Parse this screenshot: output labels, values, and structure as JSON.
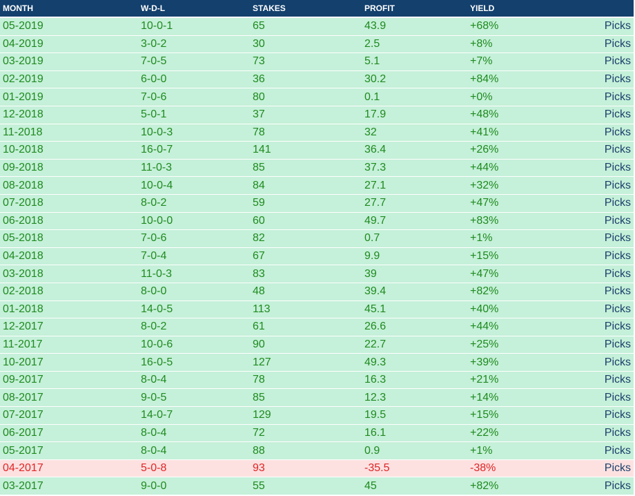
{
  "table": {
    "headers": {
      "month": "MONTH",
      "wdl": "W-D-L",
      "stakes": "STAKES",
      "profit": "PROFIT",
      "yield": "YIELD",
      "picks": ""
    },
    "colors": {
      "header_bg": "#13406d",
      "win_bg": "#c5f0d9",
      "win_text": "#1e8a1e",
      "loss_bg": "#fde1e1",
      "loss_text": "#e02424",
      "picks_link": "#1a3f6b"
    },
    "rows": [
      {
        "month": "05-2019",
        "wdl": "10-0-1",
        "stakes": "65",
        "profit": "43.9",
        "yield": "+68%",
        "picks": "Picks",
        "status": "win"
      },
      {
        "month": "04-2019",
        "wdl": "3-0-2",
        "stakes": "30",
        "profit": "2.5",
        "yield": "+8%",
        "picks": "Picks",
        "status": "win"
      },
      {
        "month": "03-2019",
        "wdl": "7-0-5",
        "stakes": "73",
        "profit": "5.1",
        "yield": "+7%",
        "picks": "Picks",
        "status": "win"
      },
      {
        "month": "02-2019",
        "wdl": "6-0-0",
        "stakes": "36",
        "profit": "30.2",
        "yield": "+84%",
        "picks": "Picks",
        "status": "win"
      },
      {
        "month": "01-2019",
        "wdl": "7-0-6",
        "stakes": "80",
        "profit": "0.1",
        "yield": "+0%",
        "picks": "Picks",
        "status": "win"
      },
      {
        "month": "12-2018",
        "wdl": "5-0-1",
        "stakes": "37",
        "profit": "17.9",
        "yield": "+48%",
        "picks": "Picks",
        "status": "win"
      },
      {
        "month": "11-2018",
        "wdl": "10-0-3",
        "stakes": "78",
        "profit": "32",
        "yield": "+41%",
        "picks": "Picks",
        "status": "win"
      },
      {
        "month": "10-2018",
        "wdl": "16-0-7",
        "stakes": "141",
        "profit": "36.4",
        "yield": "+26%",
        "picks": "Picks",
        "status": "win"
      },
      {
        "month": "09-2018",
        "wdl": "11-0-3",
        "stakes": "85",
        "profit": "37.3",
        "yield": "+44%",
        "picks": "Picks",
        "status": "win"
      },
      {
        "month": "08-2018",
        "wdl": "10-0-4",
        "stakes": "84",
        "profit": "27.1",
        "yield": "+32%",
        "picks": "Picks",
        "status": "win"
      },
      {
        "month": "07-2018",
        "wdl": "8-0-2",
        "stakes": "59",
        "profit": "27.7",
        "yield": "+47%",
        "picks": "Picks",
        "status": "win"
      },
      {
        "month": "06-2018",
        "wdl": "10-0-0",
        "stakes": "60",
        "profit": "49.7",
        "yield": "+83%",
        "picks": "Picks",
        "status": "win"
      },
      {
        "month": "05-2018",
        "wdl": "7-0-6",
        "stakes": "82",
        "profit": "0.7",
        "yield": "+1%",
        "picks": "Picks",
        "status": "win"
      },
      {
        "month": "04-2018",
        "wdl": "7-0-4",
        "stakes": "67",
        "profit": "9.9",
        "yield": "+15%",
        "picks": "Picks",
        "status": "win"
      },
      {
        "month": "03-2018",
        "wdl": "11-0-3",
        "stakes": "83",
        "profit": "39",
        "yield": "+47%",
        "picks": "Picks",
        "status": "win"
      },
      {
        "month": "02-2018",
        "wdl": "8-0-0",
        "stakes": "48",
        "profit": "39.4",
        "yield": "+82%",
        "picks": "Picks",
        "status": "win"
      },
      {
        "month": "01-2018",
        "wdl": "14-0-5",
        "stakes": "113",
        "profit": "45.1",
        "yield": "+40%",
        "picks": "Picks",
        "status": "win"
      },
      {
        "month": "12-2017",
        "wdl": "8-0-2",
        "stakes": "61",
        "profit": "26.6",
        "yield": "+44%",
        "picks": "Picks",
        "status": "win"
      },
      {
        "month": "11-2017",
        "wdl": "10-0-6",
        "stakes": "90",
        "profit": "22.7",
        "yield": "+25%",
        "picks": "Picks",
        "status": "win"
      },
      {
        "month": "10-2017",
        "wdl": "16-0-5",
        "stakes": "127",
        "profit": "49.3",
        "yield": "+39%",
        "picks": "Picks",
        "status": "win"
      },
      {
        "month": "09-2017",
        "wdl": "8-0-4",
        "stakes": "78",
        "profit": "16.3",
        "yield": "+21%",
        "picks": "Picks",
        "status": "win"
      },
      {
        "month": "08-2017",
        "wdl": "9-0-5",
        "stakes": "85",
        "profit": "12.3",
        "yield": "+14%",
        "picks": "Picks",
        "status": "win"
      },
      {
        "month": "07-2017",
        "wdl": "14-0-7",
        "stakes": "129",
        "profit": "19.5",
        "yield": "+15%",
        "picks": "Picks",
        "status": "win"
      },
      {
        "month": "06-2017",
        "wdl": "8-0-4",
        "stakes": "72",
        "profit": "16.1",
        "yield": "+22%",
        "picks": "Picks",
        "status": "win"
      },
      {
        "month": "05-2017",
        "wdl": "8-0-4",
        "stakes": "88",
        "profit": "0.9",
        "yield": "+1%",
        "picks": "Picks",
        "status": "win"
      },
      {
        "month": "04-2017",
        "wdl": "5-0-8",
        "stakes": "93",
        "profit": "-35.5",
        "yield": "-38%",
        "picks": "Picks",
        "status": "loss"
      },
      {
        "month": "03-2017",
        "wdl": "9-0-0",
        "stakes": "55",
        "profit": "45",
        "yield": "+82%",
        "picks": "Picks",
        "status": "win"
      }
    ]
  }
}
